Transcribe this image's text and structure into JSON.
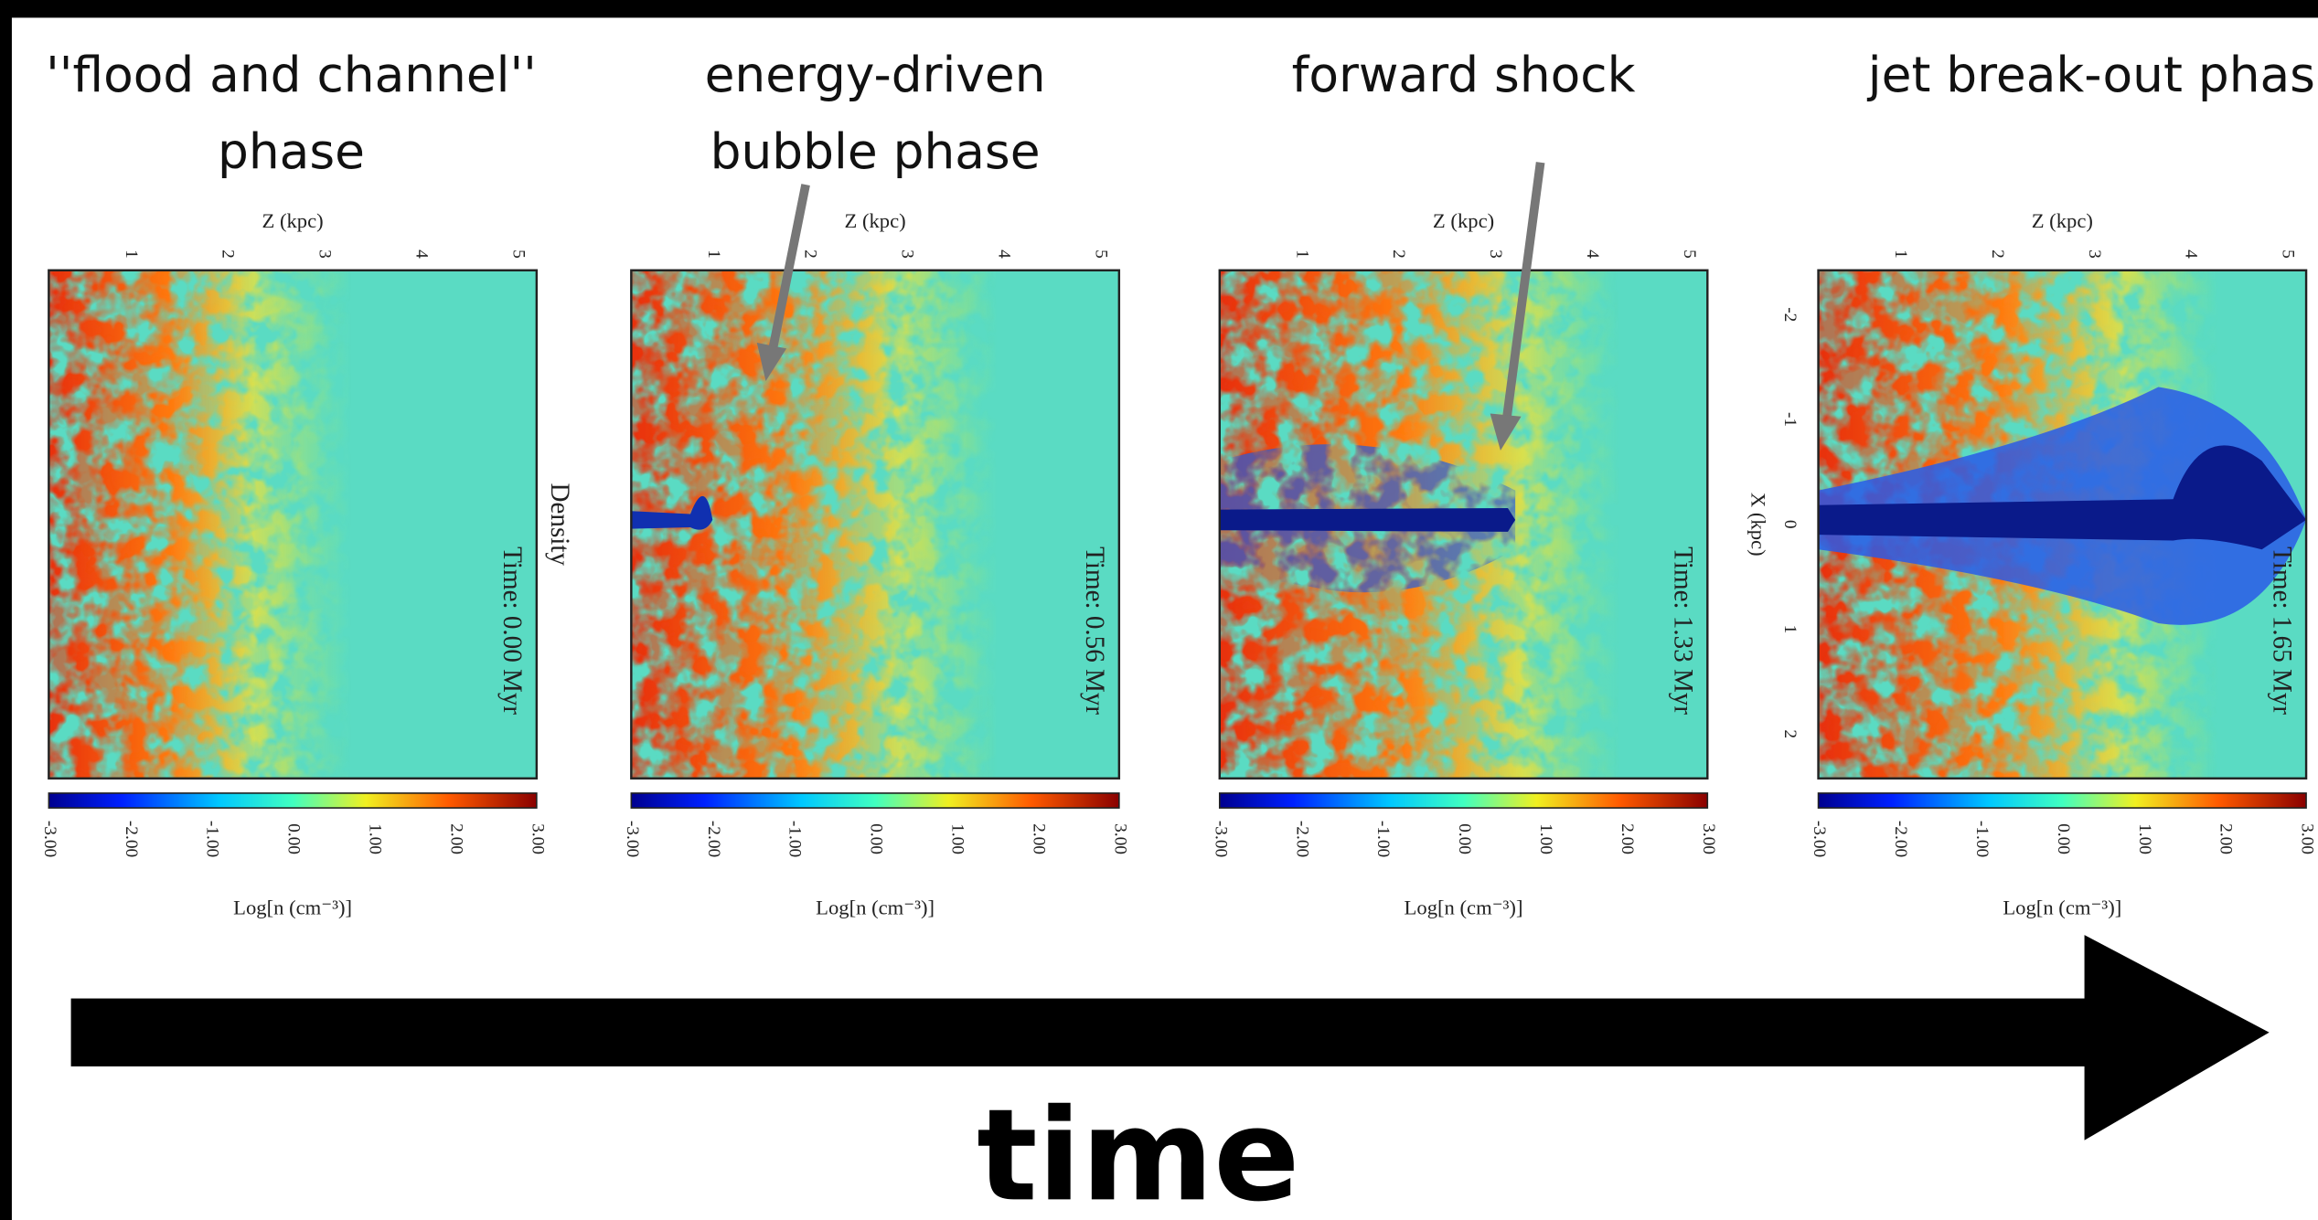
{
  "panels": [
    {
      "title": [
        "''flood and channel''",
        "phase"
      ],
      "z_label": "Z (kpc)",
      "z_ticks": [
        "1",
        "2",
        "3",
        "4",
        "5"
      ],
      "side_label": "Density",
      "time_label": "Time: 0.00 Myr",
      "colorbar_ticks": [
        "-3.00",
        "-2.00",
        "-1.00",
        "0.00",
        "1.00",
        "2.00",
        "3.00"
      ],
      "colorbar_label": "Log[n (cm⁻³)]"
    },
    {
      "title": [
        "energy-driven",
        "bubble phase"
      ],
      "z_label": "Z (kpc)",
      "z_ticks": [
        "1",
        "2",
        "3",
        "4",
        "5"
      ],
      "time_label": "Time: 0.56 Myr",
      "colorbar_ticks": [
        "-3.00",
        "-2.00",
        "-1.00",
        "0.00",
        "1.00",
        "2.00",
        "3.00"
      ],
      "colorbar_label": "Log[n (cm⁻³)]"
    },
    {
      "title": [
        "forward shock"
      ],
      "z_label": "Z (kpc)",
      "z_ticks": [
        "1",
        "2",
        "3",
        "4",
        "5"
      ],
      "time_label": "Time: 1.33 Myr",
      "colorbar_ticks": [
        "-3.00",
        "-2.00",
        "-1.00",
        "0.00",
        "1.00",
        "2.00",
        "3.00"
      ],
      "colorbar_label": "Log[n (cm⁻³)]"
    },
    {
      "title": [
        "jet break-out phase"
      ],
      "z_label": "Z (kpc)",
      "z_ticks": [
        "1",
        "2",
        "3",
        "4",
        "5"
      ],
      "x_label": "X (kpc)",
      "x_ticks": [
        "-2",
        "-1",
        "0",
        "1",
        "2"
      ],
      "time_label": "Time: 1.65 Myr",
      "colorbar_ticks": [
        "-3.00",
        "-2.00",
        "-1.00",
        "0.00",
        "1.00",
        "2.00",
        "3.00"
      ],
      "colorbar_label": "Log[n (cm⁻³)]"
    }
  ],
  "time_arrow_label": "time"
}
